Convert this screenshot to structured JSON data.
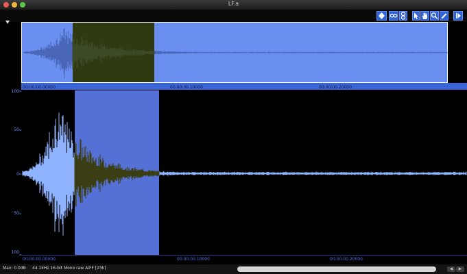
{
  "window": {
    "title": "LF.a"
  },
  "overview": {
    "ticks": [
      "00:00:00.00000",
      "00:00:00.10000",
      "00:00:00.20000"
    ]
  },
  "main": {
    "y_labels": [
      "100",
      "50",
      "0",
      "50",
      "100"
    ],
    "ticks": [
      "00:00:00.00000",
      "00:00:00.10000",
      "00:00:00.20000"
    ]
  },
  "status": {
    "max": "Max: 0.0dB",
    "format": "44.1kHz 16-bit Mono raw  AIFF [25k]"
  },
  "colors": {
    "overview_bg": "#6a8ff0",
    "selection": "#5571d6",
    "waveform": "#8fb3ff",
    "selected_waveform": "#3a3e12",
    "accent": "#2e62d9"
  }
}
